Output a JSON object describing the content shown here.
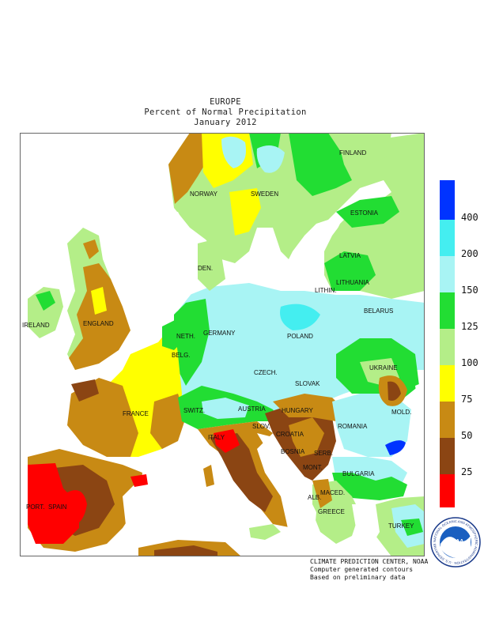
{
  "title": {
    "line1": "EUROPE",
    "line2": "Percent of Normal Precipitation",
    "line3": "January 2012"
  },
  "countries": [
    {
      "key": "finland",
      "label": "FINLAND"
    },
    {
      "key": "norway",
      "label": "NORWAY"
    },
    {
      "key": "sweden",
      "label": "SWEDEN"
    },
    {
      "key": "estonia",
      "label": "ESTONIA"
    },
    {
      "key": "latvia",
      "label": "LATVIA"
    },
    {
      "key": "den",
      "label": "DEN."
    },
    {
      "key": "lithuania",
      "label": "LITHUANIA"
    },
    {
      "key": "lithin",
      "label": "LITHIN."
    },
    {
      "key": "ireland",
      "label": "IRELAND"
    },
    {
      "key": "england",
      "label": "ENGLAND"
    },
    {
      "key": "belarus",
      "label": "BELARUS"
    },
    {
      "key": "neth",
      "label": "NETH."
    },
    {
      "key": "germany",
      "label": "GERMANY"
    },
    {
      "key": "poland",
      "label": "POLAND"
    },
    {
      "key": "belg",
      "label": "BELG."
    },
    {
      "key": "czech",
      "label": "CZECH."
    },
    {
      "key": "ukraine",
      "label": "UKRAINE"
    },
    {
      "key": "slovak",
      "label": "SLOVAK"
    },
    {
      "key": "france",
      "label": "FRANCE"
    },
    {
      "key": "switz",
      "label": "SWITZ."
    },
    {
      "key": "austria",
      "label": "AUSTRIA"
    },
    {
      "key": "hungary",
      "label": "HUNGARY"
    },
    {
      "key": "mold",
      "label": "MOLD."
    },
    {
      "key": "slov",
      "label": "SLOV."
    },
    {
      "key": "croatia",
      "label": "CROATIA"
    },
    {
      "key": "romania",
      "label": "ROMANIA"
    },
    {
      "key": "italy",
      "label": "ITALY"
    },
    {
      "key": "bosnia",
      "label": "BOSNIA"
    },
    {
      "key": "serb",
      "label": "SERB."
    },
    {
      "key": "bulgaria",
      "label": "BULGARIA"
    },
    {
      "key": "mont",
      "label": "MONT."
    },
    {
      "key": "port",
      "label": "PORT."
    },
    {
      "key": "spain",
      "label": "SPAIN"
    },
    {
      "key": "alb",
      "label": "ALB."
    },
    {
      "key": "maced",
      "label": "MACED."
    },
    {
      "key": "greece",
      "label": "GREECE"
    },
    {
      "key": "turkey",
      "label": "TURKEY"
    }
  ],
  "legend": {
    "bins": [
      {
        "color": "#0033ff",
        "label": "400"
      },
      {
        "color": "#44eef0",
        "label": "200"
      },
      {
        "color": "#a8f4f4",
        "label": "150"
      },
      {
        "color": "#22dd33",
        "label": "125"
      },
      {
        "color": "#b4ee88",
        "label": "100"
      },
      {
        "color": "#ffff00",
        "label": "75"
      },
      {
        "color": "#c88a14",
        "label": "50"
      },
      {
        "color": "#8b4513",
        "label": "25"
      },
      {
        "color": "#ff0000",
        "label": ""
      }
    ]
  },
  "footer": {
    "line1": "CLIMATE PREDICTION CENTER, NOAA",
    "line2": "Computer generated contours",
    "line3": "Based on preliminary data"
  },
  "logo": {
    "center_text": "NOAA",
    "ring_text": "NATIONAL OCEANIC AND ATMOSPHERIC ADMINISTRATION · U.S. DEPARTMENT OF COMMERCE"
  }
}
